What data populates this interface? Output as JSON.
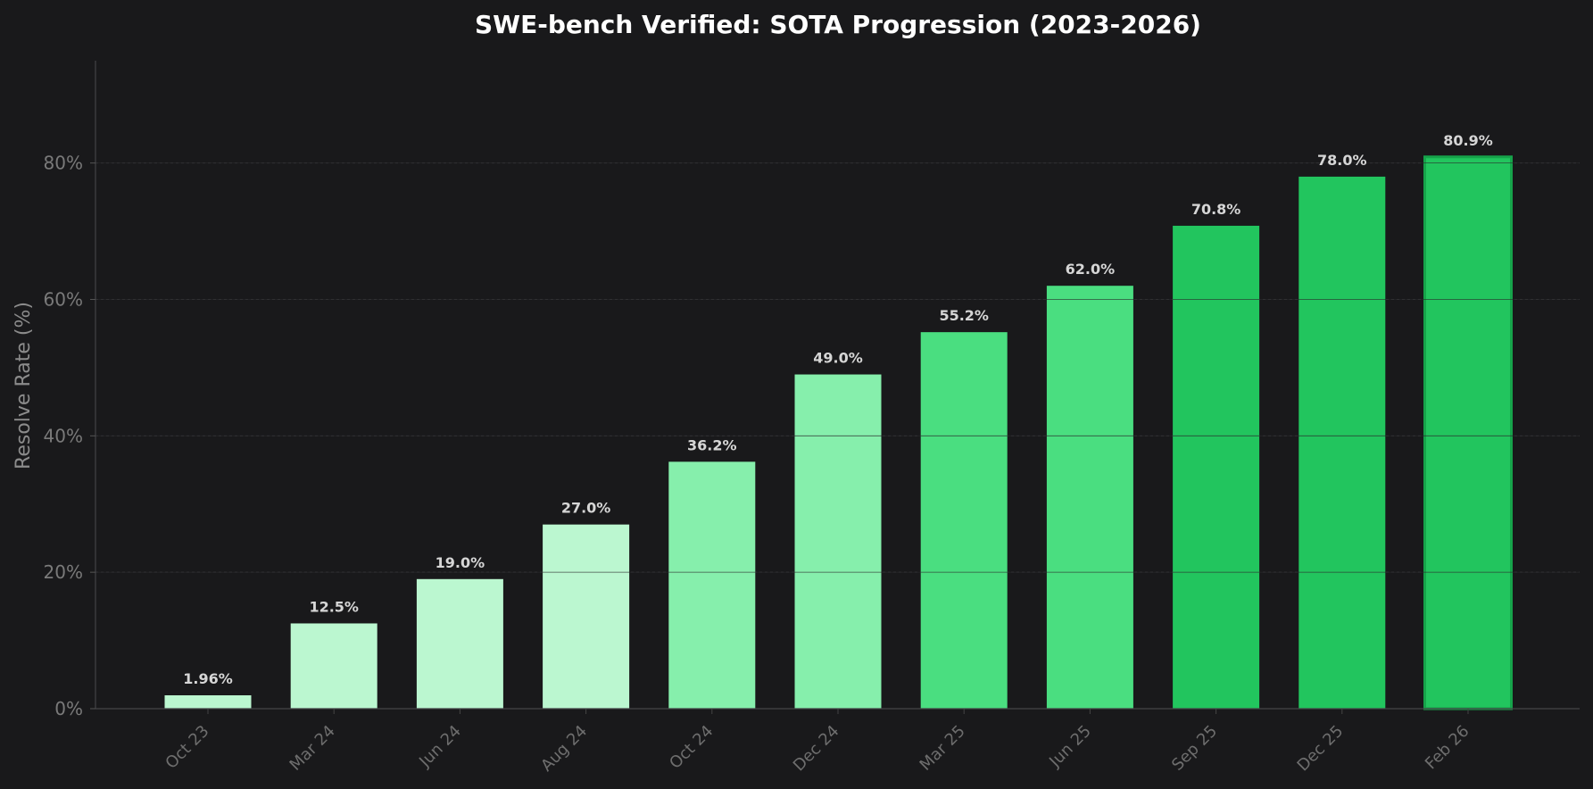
{
  "chart_data": {
    "type": "bar",
    "title": "SWE-bench Verified: SOTA Progression (2023-2026)",
    "xlabel": "",
    "ylabel": "Resolve Rate (%)",
    "ylim": [
      0,
      95
    ],
    "yticks": [
      0,
      20,
      40,
      60,
      80
    ],
    "ytick_labels": [
      "0%",
      "20%",
      "40%",
      "60%",
      "80%"
    ],
    "grid": true,
    "categories": [
      "Oct 23",
      "Mar 24",
      "Jun 24",
      "Aug 24",
      "Oct 24",
      "Dec 24",
      "Mar 25",
      "Jun 25",
      "Sep 25",
      "Dec 25",
      "Feb 26"
    ],
    "values": [
      1.96,
      12.5,
      19.0,
      27.0,
      36.2,
      49.0,
      55.2,
      62.0,
      70.8,
      78.0,
      80.9
    ],
    "value_labels": [
      "1.96%",
      "12.5%",
      "19.0%",
      "27.0%",
      "36.2%",
      "49.0%",
      "55.2%",
      "62.0%",
      "70.8%",
      "78.0%",
      "80.9%"
    ],
    "colors": [
      "#bbf7d0",
      "#bbf7d0",
      "#bbf7d0",
      "#bbf7d0",
      "#86efac",
      "#86efac",
      "#4ade80",
      "#4ade80",
      "#22c55e",
      "#22c55e",
      "#22c55e"
    ],
    "highlight_edge_color": "#16a34a",
    "background_color": "#19191b"
  }
}
